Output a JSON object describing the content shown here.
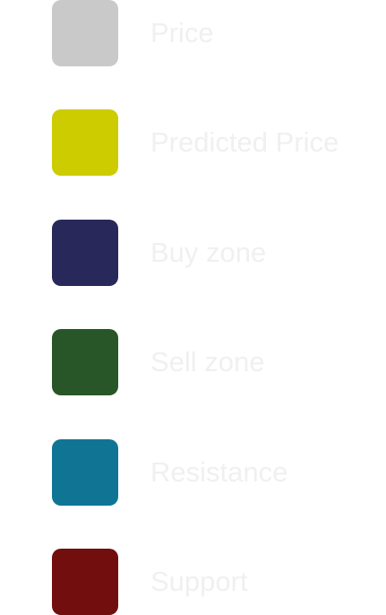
{
  "chart_data": {
    "type": "legend",
    "legend": [
      {
        "label": "Price",
        "color": "#c9c9c9"
      },
      {
        "label": "Predicted Price",
        "color": "#cccc00"
      },
      {
        "label": "Buy zone",
        "color": "#29285a"
      },
      {
        "label": "Sell zone",
        "color": "#285628"
      },
      {
        "label": "Resistance",
        "color": "#107594"
      },
      {
        "label": "Support",
        "color": "#720e0e"
      }
    ]
  }
}
